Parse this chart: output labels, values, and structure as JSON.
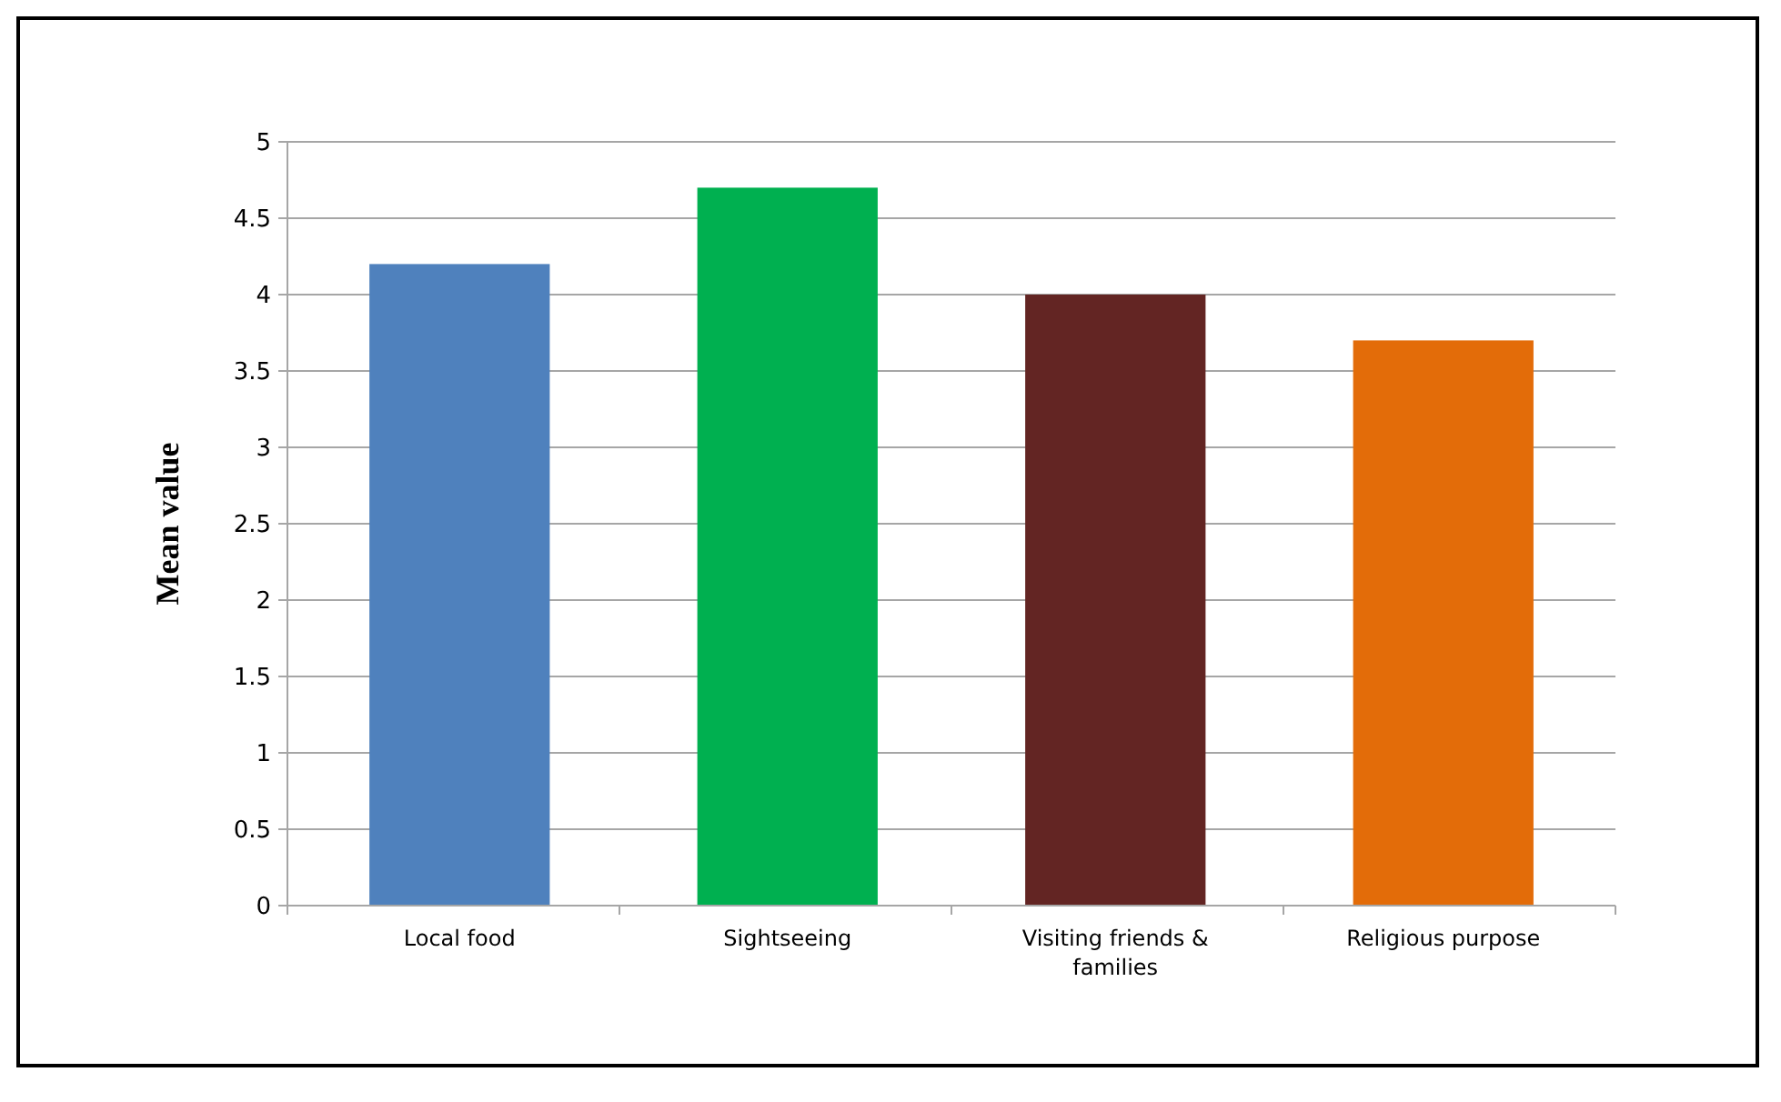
{
  "chart_data": {
    "type": "bar",
    "ylabel": "Mean value",
    "categories": [
      "Local food",
      "Sightseeing",
      "Visiting friends & families",
      "Religious purpose"
    ],
    "values": [
      4.2,
      4.7,
      4.0,
      3.7
    ],
    "colors": [
      "#4f81bd",
      "#00b050",
      "#632523",
      "#e36c09"
    ],
    "ylim": [
      0,
      5
    ],
    "yticks": [
      0,
      0.5,
      1,
      1.5,
      2,
      2.5,
      3,
      3.5,
      4,
      4.5,
      5
    ],
    "grid": "y"
  }
}
